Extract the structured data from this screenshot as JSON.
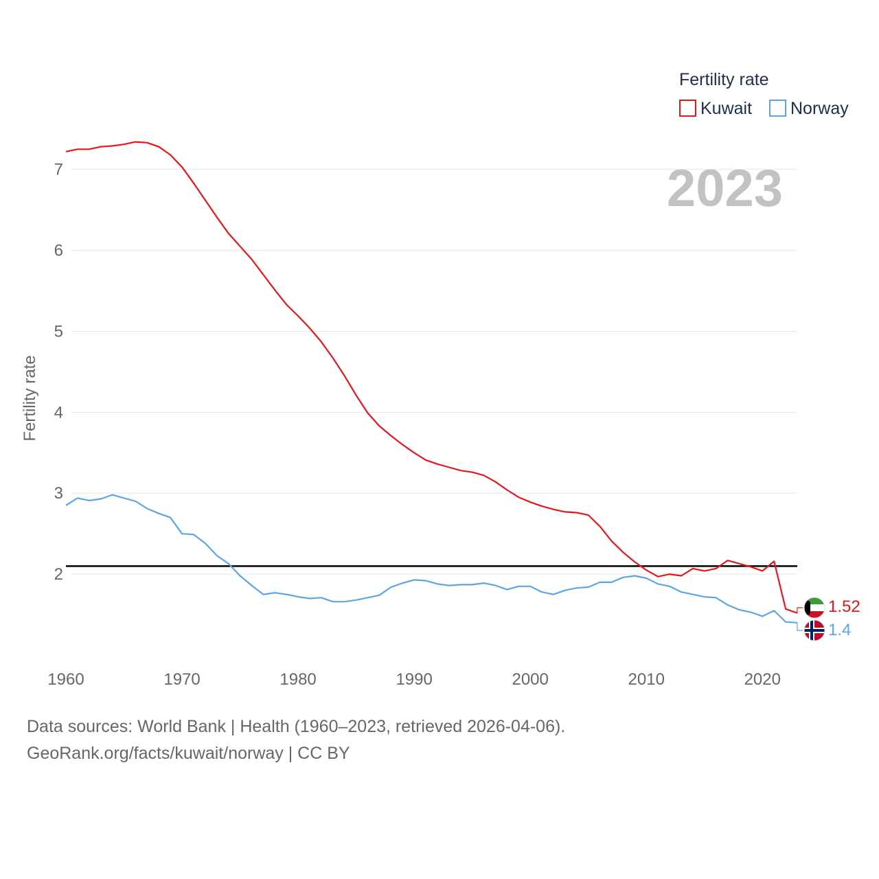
{
  "chart_data": {
    "type": "line",
    "title": "",
    "year_label": "2023",
    "xlabel": "",
    "ylabel": "Fertility rate",
    "xlim": [
      1960,
      2023
    ],
    "ylim": [
      1,
      7.6
    ],
    "x_ticks": [
      1960,
      1970,
      1980,
      1990,
      2000,
      2010,
      2020
    ],
    "y_ticks": [
      2,
      3,
      4,
      5,
      6,
      7
    ],
    "legend": {
      "title": "Fertility rate",
      "position": "top-right",
      "entries": [
        "Kuwait",
        "Norway"
      ]
    },
    "reference_line": {
      "value": 2.1,
      "color": "#000000"
    },
    "x": [
      1960,
      1961,
      1962,
      1963,
      1964,
      1965,
      1966,
      1967,
      1968,
      1969,
      1970,
      1971,
      1972,
      1973,
      1974,
      1975,
      1976,
      1977,
      1978,
      1979,
      1980,
      1981,
      1982,
      1983,
      1984,
      1985,
      1986,
      1987,
      1988,
      1989,
      1990,
      1991,
      1992,
      1993,
      1994,
      1995,
      1996,
      1997,
      1998,
      1999,
      2000,
      2001,
      2002,
      2003,
      2004,
      2005,
      2006,
      2007,
      2008,
      2009,
      2010,
      2011,
      2012,
      2013,
      2014,
      2015,
      2016,
      2017,
      2018,
      2019,
      2020,
      2021,
      2022,
      2023
    ],
    "series": [
      {
        "name": "Kuwait",
        "color": "#e8141b",
        "end_label": "1.52",
        "values": [
          7.22,
          7.25,
          7.25,
          7.28,
          7.29,
          7.31,
          7.34,
          7.33,
          7.28,
          7.18,
          7.03,
          6.83,
          6.62,
          6.41,
          6.21,
          6.05,
          5.89,
          5.7,
          5.51,
          5.33,
          5.19,
          5.04,
          4.87,
          4.67,
          4.45,
          4.21,
          3.99,
          3.83,
          3.71,
          3.6,
          3.5,
          3.41,
          3.36,
          3.32,
          3.28,
          3.26,
          3.22,
          3.14,
          3.04,
          2.95,
          2.89,
          2.84,
          2.8,
          2.77,
          2.76,
          2.73,
          2.59,
          2.41,
          2.27,
          2.15,
          2.05,
          1.97,
          2.0,
          1.98,
          2.07,
          2.04,
          2.07,
          2.17,
          2.13,
          2.09,
          2.04,
          2.16,
          1.57,
          1.52
        ]
      },
      {
        "name": "Norway",
        "color": "#5aa5e8",
        "end_label": "1.4",
        "values": [
          2.85,
          2.94,
          2.91,
          2.93,
          2.98,
          2.94,
          2.9,
          2.81,
          2.75,
          2.7,
          2.5,
          2.49,
          2.38,
          2.23,
          2.13,
          1.98,
          1.86,
          1.75,
          1.77,
          1.75,
          1.72,
          1.7,
          1.71,
          1.66,
          1.66,
          1.68,
          1.71,
          1.74,
          1.84,
          1.89,
          1.93,
          1.92,
          1.88,
          1.86,
          1.87,
          1.87,
          1.89,
          1.86,
          1.81,
          1.85,
          1.85,
          1.78,
          1.75,
          1.8,
          1.83,
          1.84,
          1.9,
          1.9,
          1.96,
          1.98,
          1.95,
          1.88,
          1.85,
          1.78,
          1.75,
          1.72,
          1.71,
          1.62,
          1.56,
          1.53,
          1.48,
          1.55,
          1.41,
          1.4
        ]
      }
    ]
  },
  "footer": {
    "line1": "Data sources: World Bank | Health (1960–2023, retrieved 2026-04-06).",
    "line2": "GeoRank.org/facts/kuwait/norway | CC BY"
  }
}
